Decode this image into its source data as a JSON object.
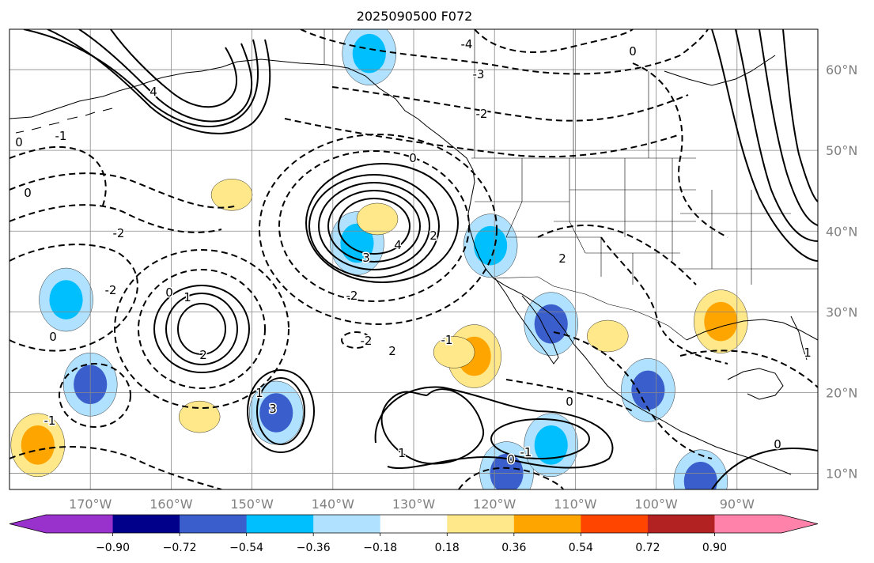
{
  "chart_data": {
    "type": "heatmap",
    "title": "2025090500 F072",
    "grid": true,
    "projection": "PlateCarree",
    "x_axis": {
      "range": [
        -180,
        -80
      ],
      "ticks": [
        -170,
        -160,
        -150,
        -140,
        -130,
        -120,
        -110,
        -100,
        -90
      ],
      "tick_labels": [
        "170°W",
        "160°W",
        "150°W",
        "140°W",
        "130°W",
        "120°W",
        "110°W",
        "100°W",
        "90°W"
      ]
    },
    "y_axis": {
      "range": [
        8,
        65
      ],
      "ticks": [
        10,
        20,
        30,
        40,
        50,
        60
      ],
      "tick_labels": [
        "10°N",
        "20°N",
        "30°N",
        "40°N",
        "50°N",
        "60°N"
      ],
      "side": "right"
    },
    "colorbar": {
      "orientation": "horizontal",
      "extend": "both",
      "boundaries": [
        -0.9,
        -0.72,
        -0.54,
        -0.36,
        -0.18,
        0.18,
        0.36,
        0.54,
        0.72,
        0.9
      ],
      "tick_labels": [
        "−0.90",
        "−0.72",
        "−0.54",
        "−0.36",
        "−0.18",
        "0.18",
        "0.36",
        "0.54",
        "0.72",
        "0.90"
      ],
      "colors": [
        "#9932cc",
        "#00008b",
        "#3a5fcd",
        "#00bfff",
        "#b0e2ff",
        "#ffffff",
        "#ffe88a",
        "#ffa500",
        "#ff4500",
        "#b22222",
        "#ff82ab"
      ]
    },
    "contours": {
      "positive_style": "solid",
      "negative_style": "dashed",
      "labeled_levels": [
        "-4",
        "-3",
        "-2",
        "-1",
        "0",
        "1",
        "2",
        "3",
        "4"
      ]
    },
    "shaded_regions": [
      {
        "lon": -135.5,
        "lat": 62.0,
        "value": -0.36
      },
      {
        "lon": -137.0,
        "lat": 38.5,
        "value": -0.36
      },
      {
        "lon": -120.5,
        "lat": 38.2,
        "value": -0.36
      },
      {
        "lon": -113.0,
        "lat": 28.5,
        "value": -0.54
      },
      {
        "lon": -170.0,
        "lat": 21.0,
        "value": -0.54
      },
      {
        "lon": -147.0,
        "lat": 17.5,
        "value": -0.54
      },
      {
        "lon": -101.0,
        "lat": 20.3,
        "value": -0.54
      },
      {
        "lon": -118.5,
        "lat": 10.0,
        "value": -0.54
      },
      {
        "lon": -94.5,
        "lat": 9.0,
        "value": -0.54
      },
      {
        "lon": -113.0,
        "lat": 13.5,
        "value": -0.36
      },
      {
        "lon": -173.0,
        "lat": 31.5,
        "value": -0.36
      },
      {
        "lon": -122.5,
        "lat": 24.5,
        "value": 0.36
      },
      {
        "lon": -125.0,
        "lat": 25.0,
        "value": 0.18
      },
      {
        "lon": -92.0,
        "lat": 28.8,
        "value": 0.36
      },
      {
        "lon": -176.5,
        "lat": 13.5,
        "value": 0.36
      },
      {
        "lon": -152.5,
        "lat": 44.5,
        "value": 0.18
      },
      {
        "lon": -134.5,
        "lat": 41.5,
        "value": 0.18
      },
      {
        "lon": -156.5,
        "lat": 17.0,
        "value": 0.18
      },
      {
        "lon": -106.0,
        "lat": 27.0,
        "value": 0.18
      }
    ]
  }
}
